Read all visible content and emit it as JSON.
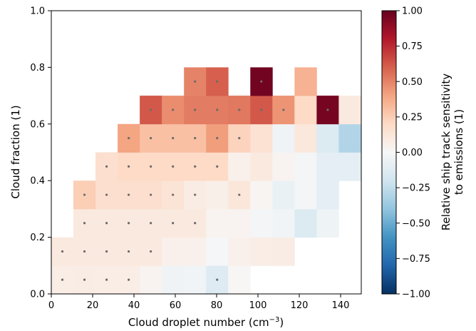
{
  "chart_data": {
    "type": "heatmap",
    "xlabel": "Cloud droplet number (cm$^{-3}$)",
    "xlabel_main": "Cloud droplet number (cm",
    "xlabel_sup": "−3",
    "xlabel_end": ")",
    "ylabel": "Cloud fraction (1)",
    "colorbar_label": [
      "Relative ship track sensitivity",
      "to emissions (1)"
    ],
    "xlim": [
      0,
      150
    ],
    "ylim": [
      0,
      1
    ],
    "x_ticks": [
      "0",
      "20",
      "40",
      "60",
      "80",
      "100",
      "120",
      "140"
    ],
    "y_ticks": [
      "0.0",
      "0.2",
      "0.4",
      "0.6",
      "0.8",
      "1.0"
    ],
    "colorbar_range": [
      -1,
      1
    ],
    "colorbar_ticks": [
      "1.00",
      "0.75",
      "0.50",
      "0.25",
      "0.00",
      "−0.25",
      "−0.50",
      "−0.75",
      "−1.00"
    ],
    "colormap": "RdBu_r",
    "x_bin_edges": [
      0,
      10.7,
      21.4,
      32.1,
      42.8,
      53.5,
      64.2,
      74.9,
      85.6,
      96.3,
      107.0,
      117.7,
      128.4,
      139.1,
      150.0
    ],
    "y_bin_edges": [
      0,
      0.1,
      0.2,
      0.3,
      0.4,
      0.5,
      0.6,
      0.7,
      0.8,
      0.9,
      1.0
    ],
    "cells": [
      {
        "col": 0,
        "row": 0,
        "v": 0.07,
        "dot": true
      },
      {
        "col": 1,
        "row": 0,
        "v": 0.08,
        "dot": true
      },
      {
        "col": 2,
        "row": 0,
        "v": 0.07,
        "dot": true
      },
      {
        "col": 3,
        "row": 0,
        "v": 0.07,
        "dot": true
      },
      {
        "col": 4,
        "row": 0,
        "v": 0.03,
        "dot": false
      },
      {
        "col": 5,
        "row": 0,
        "v": -0.04,
        "dot": false
      },
      {
        "col": 6,
        "row": 0,
        "v": -0.03,
        "dot": false
      },
      {
        "col": 7,
        "row": 0,
        "v": -0.13,
        "dot": true
      },
      {
        "col": 8,
        "row": 0,
        "v": 0.01,
        "dot": false
      },
      {
        "col": 0,
        "row": 1,
        "v": 0.1,
        "dot": true
      },
      {
        "col": 1,
        "row": 1,
        "v": 0.1,
        "dot": true
      },
      {
        "col": 2,
        "row": 1,
        "v": 0.1,
        "dot": true
      },
      {
        "col": 3,
        "row": 1,
        "v": 0.1,
        "dot": true
      },
      {
        "col": 4,
        "row": 1,
        "v": 0.1,
        "dot": true
      },
      {
        "col": 5,
        "row": 1,
        "v": 0.05,
        "dot": false
      },
      {
        "col": 6,
        "row": 1,
        "v": 0.05,
        "dot": false
      },
      {
        "col": 7,
        "row": 1,
        "v": -0.01,
        "dot": false
      },
      {
        "col": 8,
        "row": 1,
        "v": 0.05,
        "dot": false
      },
      {
        "col": 9,
        "row": 1,
        "v": 0.07,
        "dot": false
      },
      {
        "col": 10,
        "row": 1,
        "v": 0.08,
        "dot": false
      },
      {
        "col": 1,
        "row": 2,
        "v": 0.1,
        "dot": true
      },
      {
        "col": 2,
        "row": 2,
        "v": 0.1,
        "dot": true
      },
      {
        "col": 3,
        "row": 2,
        "v": 0.1,
        "dot": true
      },
      {
        "col": 4,
        "row": 2,
        "v": 0.1,
        "dot": true
      },
      {
        "col": 5,
        "row": 2,
        "v": 0.1,
        "dot": true
      },
      {
        "col": 6,
        "row": 2,
        "v": 0.1,
        "dot": true
      },
      {
        "col": 7,
        "row": 2,
        "v": 0.03,
        "dot": false
      },
      {
        "col": 8,
        "row": 2,
        "v": 0.03,
        "dot": false
      },
      {
        "col": 9,
        "row": 2,
        "v": -0.02,
        "dot": false
      },
      {
        "col": 10,
        "row": 2,
        "v": -0.03,
        "dot": false
      },
      {
        "col": 11,
        "row": 2,
        "v": -0.14,
        "dot": false
      },
      {
        "col": 12,
        "row": 2,
        "v": -0.05,
        "dot": false
      },
      {
        "col": 1,
        "row": 3,
        "v": 0.25,
        "dot": true
      },
      {
        "col": 2,
        "row": 3,
        "v": 0.17,
        "dot": true
      },
      {
        "col": 3,
        "row": 3,
        "v": 0.17,
        "dot": true
      },
      {
        "col": 4,
        "row": 3,
        "v": 0.17,
        "dot": true
      },
      {
        "col": 5,
        "row": 3,
        "v": 0.14,
        "dot": true
      },
      {
        "col": 6,
        "row": 3,
        "v": 0.08,
        "dot": true
      },
      {
        "col": 7,
        "row": 3,
        "v": 0.06,
        "dot": false
      },
      {
        "col": 8,
        "row": 3,
        "v": 0.12,
        "dot": true
      },
      {
        "col": 9,
        "row": 3,
        "v": 0.02,
        "dot": false
      },
      {
        "col": 10,
        "row": 3,
        "v": -0.07,
        "dot": false
      },
      {
        "col": 11,
        "row": 3,
        "v": -0.02,
        "dot": false
      },
      {
        "col": 12,
        "row": 3,
        "v": -0.1,
        "dot": false
      },
      {
        "col": 2,
        "row": 4,
        "v": 0.17,
        "dot": true
      },
      {
        "col": 3,
        "row": 4,
        "v": 0.2,
        "dot": true
      },
      {
        "col": 4,
        "row": 4,
        "v": 0.2,
        "dot": true
      },
      {
        "col": 5,
        "row": 4,
        "v": 0.2,
        "dot": true
      },
      {
        "col": 6,
        "row": 4,
        "v": 0.2,
        "dot": true
      },
      {
        "col": 7,
        "row": 4,
        "v": 0.2,
        "dot": true
      },
      {
        "col": 8,
        "row": 4,
        "v": 0.05,
        "dot": false
      },
      {
        "col": 9,
        "row": 4,
        "v": 0.1,
        "dot": false
      },
      {
        "col": 10,
        "row": 4,
        "v": 0.03,
        "dot": false
      },
      {
        "col": 11,
        "row": 4,
        "v": -0.02,
        "dot": false
      },
      {
        "col": 12,
        "row": 4,
        "v": -0.1,
        "dot": false
      },
      {
        "col": 13,
        "row": 4,
        "v": -0.1,
        "dot": false
      },
      {
        "col": 3,
        "row": 5,
        "v": 0.4,
        "dot": true
      },
      {
        "col": 4,
        "row": 5,
        "v": 0.3,
        "dot": true
      },
      {
        "col": 5,
        "row": 5,
        "v": 0.3,
        "dot": true
      },
      {
        "col": 6,
        "row": 5,
        "v": 0.3,
        "dot": true
      },
      {
        "col": 7,
        "row": 5,
        "v": 0.42,
        "dot": true
      },
      {
        "col": 8,
        "row": 5,
        "v": 0.23,
        "dot": true
      },
      {
        "col": 9,
        "row": 5,
        "v": 0.15,
        "dot": false
      },
      {
        "col": 10,
        "row": 5,
        "v": -0.04,
        "dot": false
      },
      {
        "col": 11,
        "row": 5,
        "v": 0.11,
        "dot": false
      },
      {
        "col": 12,
        "row": 5,
        "v": -0.14,
        "dot": false
      },
      {
        "col": 13,
        "row": 5,
        "v": -0.3,
        "dot": false
      },
      {
        "col": 4,
        "row": 6,
        "v": 0.62,
        "dot": true
      },
      {
        "col": 5,
        "row": 6,
        "v": 0.47,
        "dot": true
      },
      {
        "col": 6,
        "row": 6,
        "v": 0.52,
        "dot": true
      },
      {
        "col": 7,
        "row": 6,
        "v": 0.52,
        "dot": true
      },
      {
        "col": 8,
        "row": 6,
        "v": 0.53,
        "dot": true
      },
      {
        "col": 9,
        "row": 6,
        "v": 0.62,
        "dot": true
      },
      {
        "col": 10,
        "row": 6,
        "v": 0.45,
        "dot": true
      },
      {
        "col": 11,
        "row": 6,
        "v": 0.2,
        "dot": false
      },
      {
        "col": 12,
        "row": 6,
        "v": 0.96,
        "dot": true
      },
      {
        "col": 13,
        "row": 6,
        "v": 0.1,
        "dot": false
      },
      {
        "col": 6,
        "row": 7,
        "v": 0.5,
        "dot": true
      },
      {
        "col": 7,
        "row": 7,
        "v": 0.6,
        "dot": true
      },
      {
        "col": 9,
        "row": 7,
        "v": 0.97,
        "dot": true
      },
      {
        "col": 11,
        "row": 7,
        "v": 0.35,
        "dot": false
      }
    ]
  }
}
